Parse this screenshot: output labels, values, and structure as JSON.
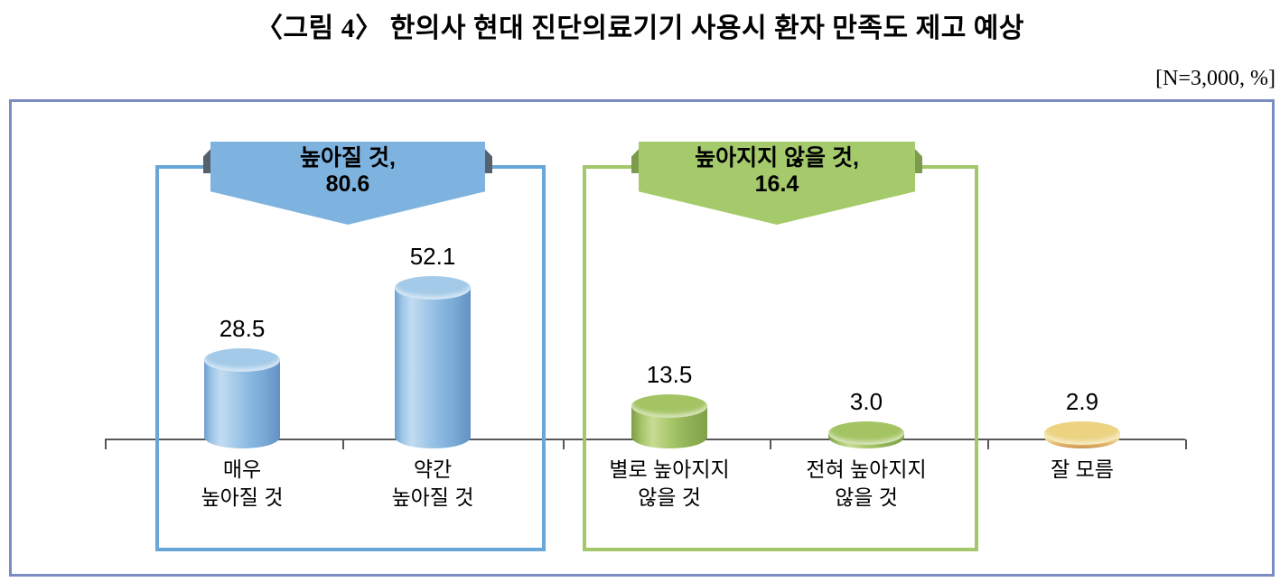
{
  "title": "〈그림 4〉 한의사 현대 진단의료기기 사용시 환자 만족도 제고 예상",
  "sample_note": "[N=3,000, %]",
  "callouts": [
    {
      "id": "increase",
      "label": "높아질 것,",
      "value": "80.6",
      "fill_color": "#7fb3df",
      "box_border_color": "#68a7d8"
    },
    {
      "id": "no-increase",
      "label": "높아지지 않을 것,",
      "value": "16.4",
      "fill_color": "#a5ca6b",
      "box_border_color": "#a3c869"
    }
  ],
  "bars": [
    {
      "value_label": "28.5",
      "label_lines": [
        "매우",
        "높아질 것"
      ],
      "color_key": "blue"
    },
    {
      "value_label": "52.1",
      "label_lines": [
        "약간",
        "높아질 것"
      ],
      "color_key": "blue"
    },
    {
      "value_label": "13.5",
      "label_lines": [
        "별로 높아지지",
        "않을 것"
      ],
      "color_key": "green"
    },
    {
      "value_label": "3.0",
      "label_lines": [
        "전혀 높아지지",
        "않을 것"
      ],
      "color_key": "green"
    },
    {
      "value_label": "2.9",
      "label_lines": [
        "잘 모름"
      ],
      "color_key": "yellow"
    }
  ],
  "chart_data": {
    "type": "bar",
    "title": "한의사 현대 진단의료기기 사용시 환자 만족도 제고 예상",
    "categories": [
      "매우 높아질 것",
      "약간 높아질 것",
      "별로 높아지지 않을 것",
      "전혀 높아지지 않을 것",
      "잘 모름"
    ],
    "values": [
      28.5,
      52.1,
      13.5,
      3.0,
      2.9
    ],
    "unit": "%",
    "sample_size": 3000,
    "bar_colors": [
      "#8ab9e2",
      "#8ab9e2",
      "#a3c662",
      "#a3c662",
      "#ecd585"
    ],
    "groups": [
      {
        "label": "높아질 것",
        "value": 80.6,
        "member_indices": [
          0,
          1
        ]
      },
      {
        "label": "높아지지 않을 것",
        "value": 16.4,
        "member_indices": [
          2,
          3
        ]
      }
    ],
    "grid": false,
    "legend": false
  }
}
